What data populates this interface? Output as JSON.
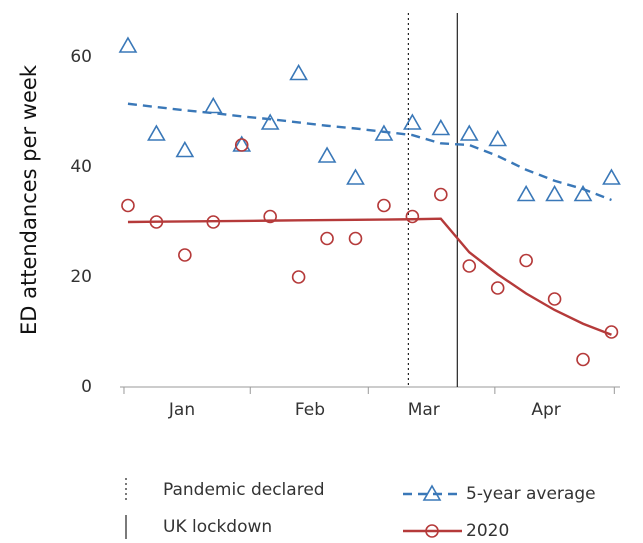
{
  "chart_data": {
    "type": "scatter",
    "ylabel": "ED attendances per week",
    "x": [
      1,
      2,
      3,
      4,
      5,
      6,
      7,
      8,
      9,
      10,
      11,
      12,
      13,
      14,
      15,
      16,
      17,
      18
    ],
    "xlim": [
      0.72,
      18.3
    ],
    "xticks": [
      0.86,
      5.3,
      9.45,
      13.9,
      18.1
    ],
    "xtick_labels": [
      {
        "value": 2.9,
        "label": "Jan"
      },
      {
        "value": 7.4,
        "label": "Feb"
      },
      {
        "value": 11.4,
        "label": "Mar"
      },
      {
        "value": 15.7,
        "label": "Apr"
      }
    ],
    "ylim": [
      0,
      68
    ],
    "yticks": [
      0,
      20,
      40,
      60
    ],
    "series": [
      {
        "name": "5-year average",
        "color": "#3a78b8",
        "marker": "triangle",
        "line": "dashed",
        "values": [
          62,
          46,
          43,
          51,
          44,
          48,
          57,
          42,
          38,
          46,
          48,
          47,
          46,
          45,
          35,
          35,
          35,
          38
        ],
        "fit": [
          51.5,
          50.9,
          50.3,
          49.8,
          49.2,
          48.7,
          48.1,
          47.5,
          47,
          46.4,
          45.8,
          44.3,
          44,
          42,
          39.5,
          37.5,
          36,
          34
        ]
      },
      {
        "name": "2020",
        "color": "#b53a3a",
        "marker": "circle",
        "line": "solid",
        "values": [
          33,
          30,
          24,
          30,
          44,
          31,
          20,
          27,
          27,
          33,
          31,
          35,
          22,
          18,
          23,
          16,
          5,
          10
        ],
        "fit": [
          30,
          30.05,
          30.1,
          30.15,
          30.2,
          30.25,
          30.3,
          30.35,
          30.4,
          30.45,
          30.5,
          30.6,
          24.5,
          20.5,
          17,
          14,
          11.5,
          9.5
        ]
      }
    ],
    "vlines": [
      {
        "label": "Pandemic declared",
        "x": 10.86,
        "style": "dotted"
      },
      {
        "label": "UK lockdown",
        "x": 12.58,
        "style": "solid"
      }
    ]
  }
}
